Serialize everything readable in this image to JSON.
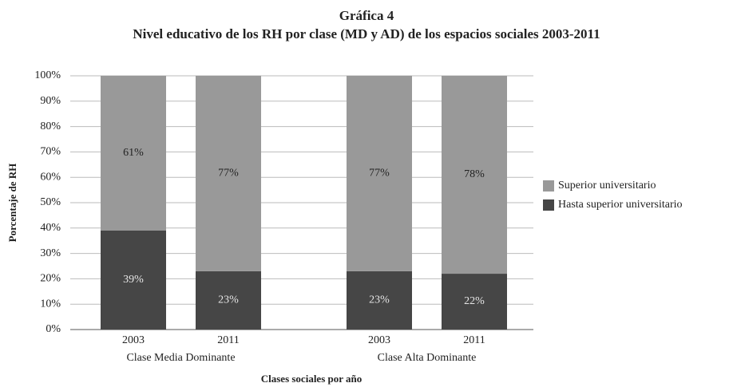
{
  "chart_data": {
    "type": "stacked_bar",
    "title": "Gráfica 4",
    "subtitle": "Nivel educativo de los RH por clase (MD y AD) de los espacios sociales 2003-2011",
    "x_label": "Clases sociales por año",
    "y_label": "Porcentaje de RH",
    "groups": [
      {
        "name": "Clase Media Dominante",
        "categories": [
          "2003",
          "2011"
        ]
      },
      {
        "name": "Clase Alta Dominante",
        "categories": [
          "2003",
          "2011"
        ]
      }
    ],
    "series": [
      {
        "name": "Hasta superior universitario",
        "color": "#464646",
        "label_color": "#e6e6e6",
        "values": [
          39,
          23,
          23,
          22
        ],
        "value_labels": [
          "39%",
          "23%",
          "23%",
          "22%"
        ]
      },
      {
        "name": "Superior universitario",
        "color": "#999999",
        "label_color": "#222222",
        "values": [
          61,
          77,
          77,
          78
        ],
        "value_labels": [
          "61%",
          "77%",
          "77%",
          "78%"
        ]
      }
    ],
    "ylim": [
      0,
      100
    ],
    "yticks": [
      {
        "value": 0,
        "label": "0%"
      },
      {
        "value": 10,
        "label": "10%"
      },
      {
        "value": 20,
        "label": "20%"
      },
      {
        "value": 30,
        "label": "30%"
      },
      {
        "value": 40,
        "label": "40%"
      },
      {
        "value": 50,
        "label": "50%"
      },
      {
        "value": 60,
        "label": "60%"
      },
      {
        "value": 70,
        "label": "70%"
      },
      {
        "value": 80,
        "label": "80%"
      },
      {
        "value": 90,
        "label": "90%"
      },
      {
        "value": 100,
        "label": "100%"
      }
    ],
    "grid": true,
    "legend": "right"
  }
}
